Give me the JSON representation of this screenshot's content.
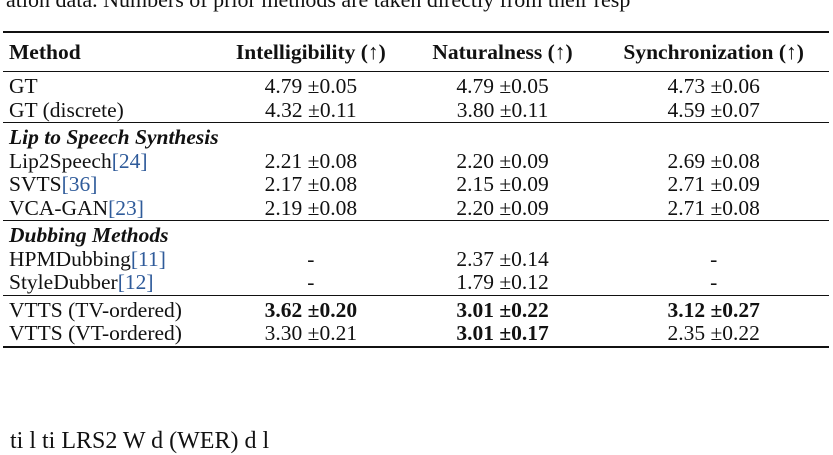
{
  "top_fragment": "ation data. Numbers of prior methods are taken directly from their resp",
  "bottom_fragment": "  ti       l  ti        LRS2   W    d               (WER)          d  l",
  "table": {
    "headers": [
      "Method",
      "Intelligibility (↑)",
      "Naturalness (↑)",
      "Synchronization (↑)"
    ],
    "ground_truth": [
      {
        "method": "GT",
        "ref": "",
        "intelligibility": "4.79 ±0.05",
        "naturalness": "4.79 ±0.05",
        "synchronization": "4.73 ±0.06"
      },
      {
        "method": "GT (discrete)",
        "ref": "",
        "intelligibility": "4.32 ±0.11",
        "naturalness": "3.80 ±0.11",
        "synchronization": "4.59 ±0.07"
      }
    ],
    "section_lip": "Lip to Speech Synthesis",
    "lip_rows": [
      {
        "method": "Lip2Speech",
        "ref": "[24]",
        "intelligibility": "2.21 ±0.08",
        "naturalness": "2.20 ±0.09",
        "synchronization": "2.69 ±0.08"
      },
      {
        "method": "SVTS",
        "ref": "[36]",
        "intelligibility": "2.17 ±0.08",
        "naturalness": "2.15 ±0.09",
        "synchronization": "2.71 ±0.09"
      },
      {
        "method": "VCA-GAN",
        "ref": "[23]",
        "intelligibility": "2.19 ±0.08",
        "naturalness": "2.20 ±0.09",
        "synchronization": "2.71 ±0.08"
      }
    ],
    "section_dub": "Dubbing Methods",
    "dub_rows": [
      {
        "method": "HPMDubbing",
        "ref": "[11]",
        "intelligibility": "-",
        "naturalness": "2.37 ±0.14",
        "synchronization": "-"
      },
      {
        "method": "StyleDubber",
        "ref": "[12]",
        "intelligibility": "-",
        "naturalness": "1.79 ±0.12",
        "synchronization": "-"
      }
    ],
    "vtts_rows": [
      {
        "method": "VTTS (TV-ordered)",
        "intelligibility": "3.62 ±0.20",
        "naturalness": "3.01 ±0.22",
        "synchronization": "3.12 ±0.27"
      },
      {
        "method": "VTTS (VT-ordered)",
        "intelligibility": "3.30 ±0.21",
        "naturalness": "3.01 ±0.17",
        "synchronization": "2.35 ±0.22"
      }
    ]
  }
}
